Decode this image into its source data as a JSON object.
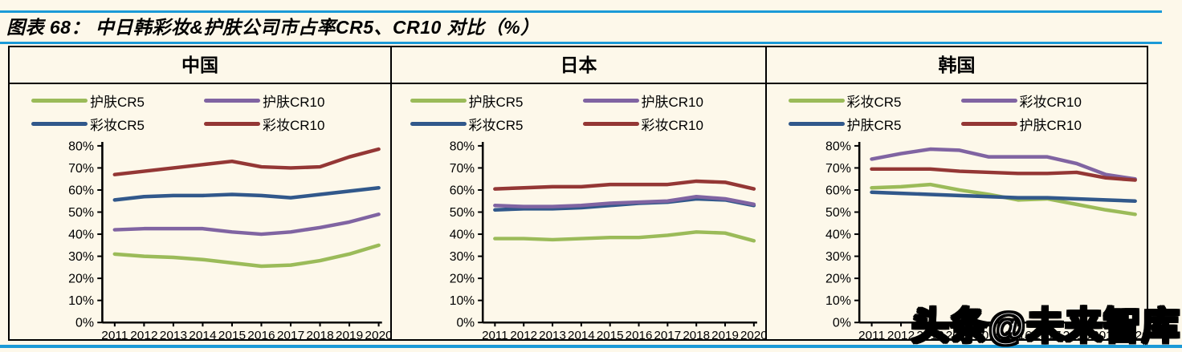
{
  "page": {
    "title": "图表 68：  中日韩彩妆&护肤公司市占率CR5、CR10 对比（%）",
    "watermark": "头条@未来智库"
  },
  "colors": {
    "background": "#FDF8EA",
    "rule_blue": "#1B9AD7",
    "border": "#000000",
    "series_green": "#9BBB59",
    "series_blue": "#31588B",
    "series_purple": "#8064A2",
    "series_red": "#943735"
  },
  "chart_data": [
    {
      "type": "line",
      "panel_title": "中国",
      "x_labels": [
        "2011",
        "2012",
        "2013",
        "2014",
        "2015",
        "2016",
        "2017",
        "2018",
        "2019",
        "2020"
      ],
      "ylim": [
        0,
        80
      ],
      "ytick_step": 10,
      "ytick_labels": [
        "0%",
        "10%",
        "20%",
        "30%",
        "40%",
        "50%",
        "60%",
        "70%",
        "80%"
      ],
      "grid": false,
      "legend_position": "top",
      "series": [
        {
          "name": "护肤CR5",
          "color": "#9BBB59",
          "values": [
            31,
            30,
            29.5,
            28.5,
            27,
            25.5,
            26,
            28,
            31,
            35
          ]
        },
        {
          "name": "护肤CR10",
          "color": "#8064A2",
          "values": [
            42,
            42.5,
            42.5,
            42.5,
            41,
            40,
            41,
            43,
            45.5,
            49
          ]
        },
        {
          "name": "彩妆CR5",
          "color": "#31588B",
          "values": [
            55.5,
            57,
            57.5,
            57.5,
            58,
            57.5,
            56.5,
            58,
            59.5,
            61
          ]
        },
        {
          "name": "彩妆CR10",
          "color": "#943735",
          "values": [
            67,
            68.5,
            70,
            71.5,
            73,
            70.5,
            70,
            70.5,
            75,
            78.5
          ]
        }
      ]
    },
    {
      "type": "line",
      "panel_title": "日本",
      "x_labels": [
        "2011",
        "2012",
        "2013",
        "2014",
        "2015",
        "2016",
        "2017",
        "2018",
        "2019",
        "2020"
      ],
      "ylim": [
        0,
        80
      ],
      "ytick_step": 10,
      "ytick_labels": [
        "0%",
        "10%",
        "20%",
        "30%",
        "40%",
        "50%",
        "60%",
        "70%",
        "80%"
      ],
      "grid": false,
      "legend_position": "top",
      "series": [
        {
          "name": "护肤CR5",
          "color": "#9BBB59",
          "values": [
            38,
            38,
            37.5,
            38,
            38.5,
            38.5,
            39.5,
            41,
            40.5,
            37
          ]
        },
        {
          "name": "护肤CR10",
          "color": "#8064A2",
          "values": [
            53,
            52.5,
            52.5,
            53,
            54,
            54.5,
            55,
            57,
            56,
            53.5
          ]
        },
        {
          "name": "彩妆CR5",
          "color": "#31588B",
          "values": [
            51,
            51.5,
            51.5,
            52,
            53,
            54,
            54.5,
            56,
            55.5,
            53
          ]
        },
        {
          "name": "彩妆CR10",
          "color": "#943735",
          "values": [
            60.5,
            61,
            61.5,
            61.5,
            62.5,
            62.5,
            62.5,
            64,
            63.5,
            60.5
          ]
        }
      ]
    },
    {
      "type": "line",
      "panel_title": "韩国",
      "x_labels": [
        "2011",
        "2012",
        "2013",
        "2014",
        "2015",
        "2016",
        "2017",
        "2018",
        "2019",
        "2020"
      ],
      "ylim": [
        0,
        80
      ],
      "ytick_step": 10,
      "ytick_labels": [
        "0%",
        "10%",
        "20%",
        "30%",
        "40%",
        "50%",
        "60%",
        "70%",
        "80%"
      ],
      "grid": false,
      "legend_position": "top",
      "series": [
        {
          "name": "彩妆CR5",
          "color": "#9BBB59",
          "values": [
            61,
            61.5,
            62.5,
            60,
            58,
            55.5,
            56,
            53.5,
            51,
            49
          ]
        },
        {
          "name": "彩妆CR10",
          "color": "#8064A2",
          "values": [
            74,
            76.5,
            78.5,
            78,
            75,
            75,
            75,
            72,
            67,
            65
          ]
        },
        {
          "name": "护肤CR5",
          "color": "#31588B",
          "values": [
            59,
            58.5,
            58,
            57.5,
            57,
            56.5,
            56.5,
            56,
            55.5,
            55
          ]
        },
        {
          "name": "护肤CR10",
          "color": "#943735",
          "values": [
            69.5,
            69.5,
            69.5,
            68.5,
            68,
            67.5,
            67.5,
            68,
            65.5,
            64.5
          ]
        }
      ]
    }
  ]
}
